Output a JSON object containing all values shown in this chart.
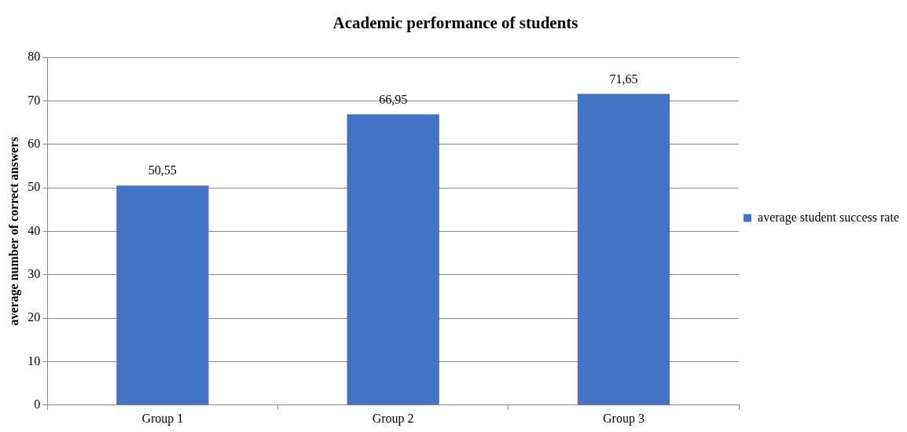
{
  "chart_data": {
    "type": "bar",
    "title": "Academic performance of students",
    "ylabel": "average number of correct answers",
    "categories": [
      "Group 1",
      "Group 2",
      "Group 3"
    ],
    "series": [
      {
        "name": "average student success rate",
        "color": "#4472c4",
        "values": [
          50.55,
          66.95,
          71.65
        ],
        "value_labels": [
          "50,55",
          "66,95",
          "71,65"
        ]
      }
    ],
    "ylim": [
      0,
      80
    ],
    "yticks": [
      0,
      10,
      20,
      30,
      40,
      50,
      60,
      70,
      80
    ],
    "grid": "y",
    "legend": "right"
  }
}
